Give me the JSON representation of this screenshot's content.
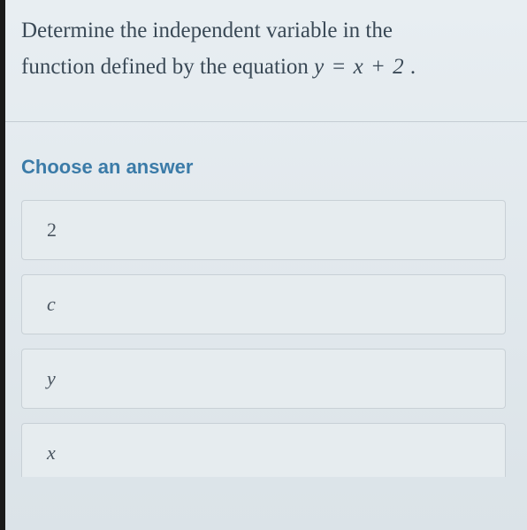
{
  "question": {
    "line1": "Determine the independent variable in the",
    "line2_prefix": "function defined by the equation  ",
    "equation": "y = x + 2",
    "line2_suffix": " ."
  },
  "choose_label": "Choose an answer",
  "options": [
    {
      "label": "2",
      "italic": false
    },
    {
      "label": "c",
      "italic": true
    },
    {
      "label": "y",
      "italic": true
    },
    {
      "label": "x",
      "italic": true
    }
  ],
  "colors": {
    "question_text": "#3a4956",
    "choose_text": "#3b7ba8",
    "option_bg": "#e6ecef",
    "option_border": "#c8d0d6",
    "option_text": "#4a5560",
    "page_bg_top": "#e8eef2",
    "page_bg_bottom": "#dbe3e8"
  }
}
